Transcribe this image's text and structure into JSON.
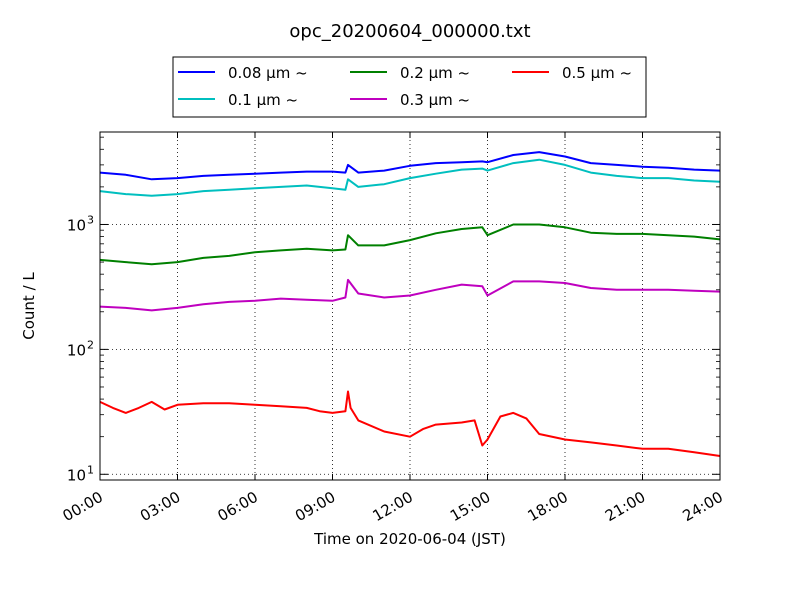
{
  "chart_data": {
    "type": "line",
    "title": "opc_20200604_000000.txt",
    "xlabel": "Time on 2020-06-04 (JST)",
    "ylabel": "Count / L",
    "y_scale": "log",
    "xlim": [
      0,
      24
    ],
    "ylim": [
      9,
      5500
    ],
    "grid": true,
    "legend_position": "top-center",
    "x_ticks": [
      0,
      3,
      6,
      9,
      12,
      15,
      18,
      21,
      24
    ],
    "x_tick_labels": [
      "00:00",
      "03:00",
      "06:00",
      "09:00",
      "12:00",
      "15:00",
      "18:00",
      "21:00",
      "24:00"
    ],
    "y_ticks": [
      10,
      100,
      1000
    ],
    "y_tick_labels": [
      "10",
      "10",
      "10"
    ],
    "y_tick_exponents": [
      "1",
      "2",
      "3"
    ],
    "series": [
      {
        "name": "0.08 μm ~",
        "color": "#0000ff",
        "x": [
          0,
          1,
          2,
          3,
          4,
          5,
          6,
          7,
          8,
          9,
          9.5,
          9.6,
          10,
          11,
          12,
          13,
          14,
          14.8,
          15,
          16,
          17,
          18,
          19,
          20,
          21,
          22,
          23,
          24
        ],
        "y": [
          2600,
          2500,
          2300,
          2350,
          2450,
          2500,
          2550,
          2600,
          2650,
          2650,
          2600,
          3000,
          2600,
          2700,
          2950,
          3100,
          3150,
          3200,
          3150,
          3600,
          3800,
          3500,
          3100,
          3000,
          2900,
          2850,
          2750,
          2700
        ]
      },
      {
        "name": "0.1 μm ~",
        "color": "#00bfbf",
        "x": [
          0,
          1,
          2,
          3,
          4,
          5,
          6,
          7,
          8,
          9,
          9.5,
          9.6,
          10,
          11,
          12,
          13,
          14,
          14.8,
          15,
          16,
          17,
          18,
          19,
          20,
          21,
          22,
          23,
          24
        ],
        "y": [
          1850,
          1750,
          1700,
          1750,
          1850,
          1900,
          1950,
          2000,
          2050,
          1950,
          1900,
          2300,
          2000,
          2100,
          2350,
          2550,
          2750,
          2800,
          2700,
          3100,
          3300,
          3000,
          2600,
          2450,
          2350,
          2350,
          2250,
          2200
        ]
      },
      {
        "name": "0.2 μm ~",
        "color": "#008000",
        "x": [
          0,
          1,
          2,
          3,
          4,
          5,
          6,
          7,
          8,
          9,
          9.5,
          9.6,
          10,
          11,
          12,
          13,
          14,
          14.8,
          15,
          16,
          17,
          18,
          19,
          20,
          21,
          22,
          23,
          24
        ],
        "y": [
          520,
          500,
          480,
          500,
          540,
          560,
          600,
          620,
          640,
          620,
          630,
          820,
          680,
          680,
          750,
          850,
          920,
          950,
          820,
          1000,
          1000,
          950,
          860,
          840,
          840,
          820,
          800,
          760
        ]
      },
      {
        "name": "0.3 μm ~",
        "color": "#bf00bf",
        "x": [
          0,
          1,
          2,
          3,
          4,
          5,
          6,
          7,
          8,
          9,
          9.5,
          9.6,
          10,
          11,
          12,
          13,
          14,
          14.8,
          15,
          16,
          17,
          18,
          19,
          20,
          21,
          22,
          23,
          24
        ],
        "y": [
          220,
          215,
          205,
          215,
          230,
          240,
          245,
          255,
          250,
          245,
          260,
          360,
          280,
          260,
          270,
          300,
          330,
          320,
          270,
          350,
          350,
          340,
          310,
          300,
          300,
          300,
          295,
          290
        ]
      },
      {
        "name": "0.5 μm ~",
        "color": "#ff0000",
        "x": [
          0,
          0.5,
          1,
          1.5,
          2,
          2.5,
          3,
          4,
          5,
          6,
          7,
          8,
          8.5,
          9,
          9.5,
          9.6,
          9.7,
          10,
          11,
          12,
          12.5,
          13,
          14,
          14.5,
          14.8,
          15,
          15.5,
          16,
          16.5,
          17,
          18,
          19,
          20,
          21,
          22,
          23,
          24
        ],
        "y": [
          38,
          34,
          31,
          34,
          38,
          33,
          36,
          37,
          37,
          36,
          35,
          34,
          32,
          31,
          32,
          46,
          34,
          27,
          22,
          20,
          23,
          25,
          26,
          27,
          17,
          19,
          29,
          31,
          28,
          21,
          19,
          18,
          17,
          16,
          16,
          15,
          14
        ]
      }
    ]
  }
}
